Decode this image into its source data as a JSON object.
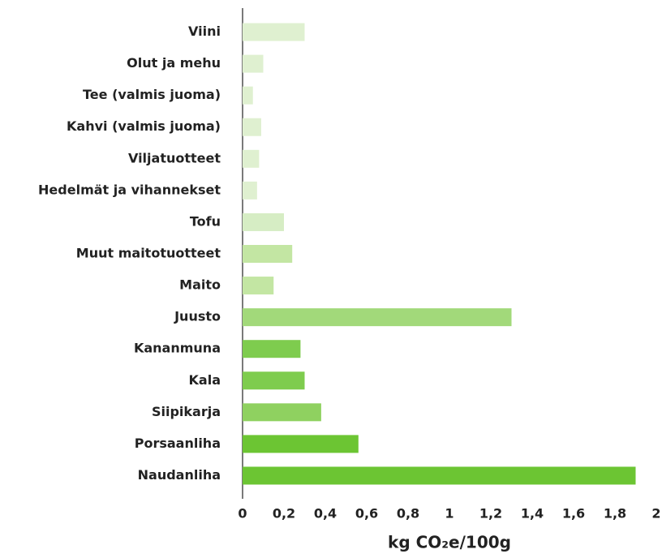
{
  "chart_data": {
    "type": "bar",
    "orientation": "horizontal",
    "categories": [
      "Viini",
      "Olut ja mehu",
      "Tee (valmis juoma)",
      "Kahvi (valmis juoma)",
      "Viljatuotteet",
      "Hedelmät ja vihannekset",
      "Tofu",
      "Muut maitotuotteet",
      "Maito",
      "Juusto",
      "Kananmuna",
      "Kala",
      "Siipikarja",
      "Porsaanliha",
      "Naudanliha"
    ],
    "values": [
      0.3,
      0.1,
      0.05,
      0.09,
      0.08,
      0.07,
      0.2,
      0.24,
      0.15,
      1.3,
      0.28,
      0.3,
      0.38,
      0.56,
      1.9
    ],
    "colors": [
      "#dff0d0",
      "#dff0d0",
      "#dff0d0",
      "#dff0d0",
      "#dff0d0",
      "#dff0d0",
      "#d6edc4",
      "#c3e6a3",
      "#c3e6a3",
      "#a2d97a",
      "#7ecc4e",
      "#7ecc4e",
      "#8fd160",
      "#6cc533",
      "#6cc533"
    ],
    "xlabel": "kg CO₂e/100g",
    "xlim": [
      0,
      2
    ],
    "xticks": [
      0,
      {
        "value": 0.2,
        "label": "0,2"
      },
      {
        "value": 0.4,
        "label": "0,4"
      },
      {
        "value": 0.6,
        "label": "0,6"
      },
      {
        "value": 0.8,
        "label": "0,8"
      },
      1,
      {
        "value": 1.2,
        "label": "1,2"
      },
      {
        "value": 1.4,
        "label": "1,4"
      },
      {
        "value": 1.6,
        "label": "1,6"
      },
      {
        "value": 1.8,
        "label": "1,8"
      },
      2
    ],
    "grid": false
  }
}
